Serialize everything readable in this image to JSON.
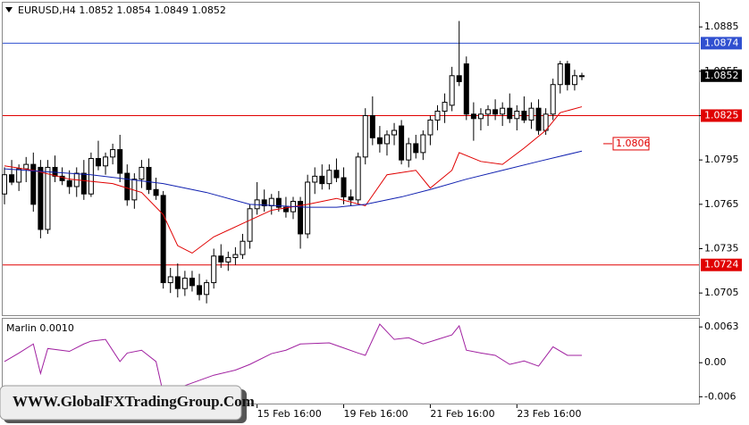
{
  "chart_data": {
    "type": "candlestick",
    "title": "EURUSD,H4  1.0852 1.0854 1.0849 1.0852",
    "open": [
      1.0772,
      1.0785,
      1.078,
      1.0789,
      1.0792,
      1.079,
      1.0748,
      1.079,
      1.0784,
      1.0781,
      1.0777,
      1.0786,
      1.0772,
      1.0796,
      1.0791,
      1.0797,
      1.0802,
      1.0786,
      1.0768,
      1.0782,
      1.079,
      1.0775,
      1.0771,
      1.0712,
      1.0716,
      1.0708,
      1.0715,
      1.071,
      1.0704,
      1.0712,
      1.073,
      1.0726,
      1.0729,
      1.0731,
      1.074,
      1.0762,
      1.0768,
      1.0764,
      1.0769,
      1.0763,
      1.076,
      1.0767,
      1.0745,
      1.078,
      1.0784,
      1.0779,
      1.0788,
      1.0783,
      1.077,
      1.0768,
      1.0797,
      1.0825,
      1.081,
      1.0806,
      1.0812,
      1.0818,
      1.0795,
      1.0806,
      1.08,
      1.0812,
      1.0822,
      1.0828,
      1.0832,
      1.0852,
      1.086,
      1.0826,
      1.0823,
      1.0826,
      1.0829,
      1.0826,
      1.083,
      1.0823,
      1.0828,
      1.0822,
      1.083,
      1.0815,
      1.0826,
      1.0846,
      1.086,
      1.0846,
      1.0852
    ],
    "high": [
      1.079,
      1.0795,
      1.0792,
      1.0797,
      1.08,
      1.0795,
      1.0795,
      1.0798,
      1.079,
      1.0788,
      1.079,
      1.0795,
      1.08,
      1.0808,
      1.08,
      1.0806,
      1.0812,
      1.0792,
      1.0786,
      1.0795,
      1.0796,
      1.0783,
      1.0774,
      1.0722,
      1.0725,
      1.072,
      1.072,
      1.0718,
      1.0714,
      1.0735,
      1.0738,
      1.0733,
      1.0736,
      1.0745,
      1.0765,
      1.078,
      1.0775,
      1.0772,
      1.0774,
      1.077,
      1.077,
      1.077,
      1.0785,
      1.079,
      1.0792,
      1.0792,
      1.0796,
      1.079,
      1.0775,
      1.08,
      1.083,
      1.0838,
      1.0818,
      1.0815,
      1.082,
      1.0822,
      1.081,
      1.0812,
      1.0815,
      1.0825,
      1.0832,
      1.084,
      1.0858,
      1.0889,
      1.0865,
      1.0834,
      1.083,
      1.0832,
      1.0836,
      1.0834,
      1.084,
      1.0832,
      1.0838,
      1.0834,
      1.0836,
      1.083,
      1.085,
      1.0862,
      1.0862,
      1.0856,
      1.0854
    ],
    "low": [
      1.0765,
      1.0778,
      1.0774,
      1.078,
      1.076,
      1.0742,
      1.0745,
      1.078,
      1.0778,
      1.0772,
      1.077,
      1.0768,
      1.077,
      1.0788,
      1.0785,
      1.0792,
      1.078,
      1.0764,
      1.0762,
      1.0776,
      1.0772,
      1.0768,
      1.0708,
      1.0705,
      1.0702,
      1.0703,
      1.0706,
      1.07,
      1.0698,
      1.0708,
      1.0722,
      1.072,
      1.0724,
      1.0728,
      1.0735,
      1.0758,
      1.076,
      1.0758,
      1.076,
      1.0756,
      1.0755,
      1.0735,
      1.0742,
      1.0772,
      1.0775,
      1.0775,
      1.078,
      1.0765,
      1.0764,
      1.0765,
      1.0792,
      1.0805,
      1.08,
      1.0798,
      1.0805,
      1.0792,
      1.079,
      1.0796,
      1.0795,
      1.0805,
      1.0815,
      1.082,
      1.0828,
      1.0845,
      1.0822,
      1.0808,
      1.0815,
      1.0818,
      1.0822,
      1.0818,
      1.082,
      1.0815,
      1.082,
      1.0816,
      1.0812,
      1.0812,
      1.0822,
      1.084,
      1.0842,
      1.0842,
      1.0849
    ],
    "close": [
      1.0785,
      1.078,
      1.0789,
      1.0792,
      1.0765,
      1.0748,
      1.079,
      1.0784,
      1.0781,
      1.0777,
      1.0786,
      1.0772,
      1.0796,
      1.0791,
      1.0797,
      1.0802,
      1.0786,
      1.0768,
      1.0782,
      1.079,
      1.0775,
      1.0771,
      1.0712,
      1.0716,
      1.0708,
      1.0715,
      1.071,
      1.0704,
      1.0712,
      1.073,
      1.0726,
      1.0729,
      1.0731,
      1.074,
      1.0762,
      1.0768,
      1.0764,
      1.0769,
      1.0763,
      1.076,
      1.0767,
      1.0745,
      1.078,
      1.0784,
      1.0779,
      1.0788,
      1.0783,
      1.077,
      1.0768,
      1.0797,
      1.0825,
      1.081,
      1.0806,
      1.0812,
      1.0815,
      1.0795,
      1.0806,
      1.08,
      1.0812,
      1.0822,
      1.0828,
      1.0834,
      1.0852,
      1.0848,
      1.0826,
      1.0823,
      1.0826,
      1.0829,
      1.0826,
      1.083,
      1.0823,
      1.0828,
      1.0822,
      1.083,
      1.0815,
      1.0826,
      1.0846,
      1.086,
      1.0846,
      1.0852,
      1.0852
    ],
    "series": [
      {
        "color": "#e00000",
        "x": [
          0,
          4,
          9,
          15,
          19,
          22,
          24,
          26,
          29,
          33,
          37,
          42,
          46,
          50,
          53,
          57,
          59,
          62,
          63,
          66,
          69,
          72,
          75,
          77,
          80
        ],
        "values": [
          1.0791,
          1.0788,
          1.0782,
          1.0779,
          1.0773,
          1.0758,
          1.0737,
          1.0732,
          1.0743,
          1.0752,
          1.0761,
          1.0765,
          1.0769,
          1.0764,
          1.0785,
          1.0788,
          1.0776,
          1.0788,
          1.08,
          1.0794,
          1.0792,
          1.0803,
          1.0815,
          1.0827,
          1.0831
        ]
      },
      {
        "color": "#1020b0",
        "x": [
          0,
          12,
          22,
          28,
          34,
          42,
          46,
          50,
          55,
          59,
          64,
          69,
          74,
          80
        ],
        "values": [
          1.0789,
          1.0785,
          1.0779,
          1.0773,
          1.0765,
          1.0763,
          1.0763,
          1.0765,
          1.077,
          1.0775,
          1.0782,
          1.0788,
          1.0794,
          1.0801
        ]
      }
    ],
    "ylim": [
      1.069,
      1.0902
    ],
    "yticks": [
      1.0705,
      1.0735,
      1.0765,
      1.0795,
      1.0825,
      1.0855,
      1.0885
    ],
    "xlim": [
      0,
      80
    ],
    "xticks": [
      {
        "value": 35,
        "label": "15 Feb 16:00"
      },
      {
        "value": 47,
        "label": "19 Feb 16:00"
      },
      {
        "value": 59,
        "label": "21 Feb 16:00"
      },
      {
        "value": 71,
        "label": "23 Feb 16:00"
      }
    ],
    "levels": [
      {
        "value": 1.0874,
        "color": "#3050d0"
      },
      {
        "value": 1.0825,
        "color": "#e00000"
      },
      {
        "value": 1.0724,
        "color": "#e00000"
      }
    ],
    "annotation": {
      "value": 1.0806,
      "color": "#e00000"
    },
    "current_price": 1.0852,
    "indicator": {
      "name": "Marlin 0.0010",
      "color": "#a020a0",
      "x": [
        0,
        2,
        4,
        5,
        6,
        9,
        11,
        12,
        14,
        16,
        17,
        19,
        21,
        22,
        29,
        32,
        34,
        37,
        39,
        41,
        45,
        49,
        50,
        52,
        54,
        56,
        58,
        60,
        62,
        63,
        64,
        66,
        68,
        70,
        72,
        74,
        76,
        78,
        80
      ],
      "values": [
        0.0002,
        0.0017,
        0.0033,
        -0.0019,
        0.0025,
        0.002,
        0.0033,
        0.0038,
        0.0041,
        0.0002,
        0.0017,
        0.0022,
        0.0002,
        -0.0054,
        -0.0022,
        -0.0013,
        -0.0003,
        0.0016,
        0.0022,
        0.0033,
        0.0035,
        0.0017,
        0.0013,
        0.0068,
        0.0041,
        0.0044,
        0.0033,
        0.0041,
        0.0049,
        0.0065,
        0.0022,
        0.0017,
        0.0013,
        -0.0003,
        0.0003,
        -0.0006,
        0.0028,
        0.0013,
        0.0013
      ],
      "y2lim": [
        -0.0072,
        0.0079
      ],
      "y2ticks": [
        -0.006,
        {
          "value": 0,
          "label": "0.00"
        },
        0.0063
      ]
    },
    "watermark": "WWW.GlobalFXTradingGroup.Com"
  }
}
